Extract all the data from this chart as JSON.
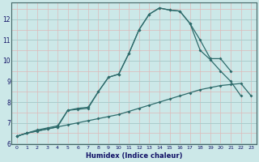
{
  "xlabel": "Humidex (Indice chaleur)",
  "bg_color": "#cce8e8",
  "line_color": "#2e6b6b",
  "grid_major_color": "#aacccc",
  "grid_minor_color": "#ddbaba",
  "series": {
    "line1": {
      "x": [
        0,
        1,
        2,
        3,
        4,
        5,
        6,
        7,
        8,
        9,
        10,
        11,
        12,
        13,
        14,
        15,
        16,
        17,
        18,
        19,
        20,
        21
      ],
      "y": [
        6.35,
        6.5,
        6.65,
        6.75,
        6.85,
        7.6,
        7.65,
        7.7,
        8.5,
        9.2,
        9.35,
        10.35,
        11.5,
        12.25,
        12.55,
        12.45,
        12.4,
        11.8,
        11.0,
        10.1,
        10.1,
        9.5
      ]
    },
    "line2": {
      "x": [
        0,
        1,
        2,
        3,
        4,
        5,
        6,
        7,
        8,
        9,
        10,
        11,
        12,
        13,
        14,
        15,
        16,
        17,
        18,
        19,
        20,
        21,
        22,
        23
      ],
      "y": [
        6.35,
        6.5,
        6.6,
        6.7,
        6.8,
        6.9,
        7.0,
        7.1,
        7.2,
        7.3,
        7.4,
        7.55,
        7.7,
        7.85,
        8.0,
        8.15,
        8.3,
        8.45,
        8.6,
        8.7,
        8.8,
        8.85,
        8.9,
        8.3
      ]
    },
    "line3": {
      "x": [
        0,
        1,
        2,
        3,
        4,
        5,
        6,
        7,
        8,
        9,
        10,
        11,
        12,
        13,
        14,
        15,
        16,
        17,
        18,
        19,
        20,
        21,
        22,
        23
      ],
      "y": [
        6.35,
        6.5,
        6.6,
        6.7,
        6.8,
        7.6,
        7.7,
        7.75,
        8.5,
        9.2,
        9.35,
        10.35,
        11.5,
        12.25,
        12.55,
        12.45,
        12.4,
        11.8,
        10.5,
        10.05,
        9.5,
        9.0,
        8.3,
        null
      ]
    }
  },
  "xlim": [
    -0.5,
    23.5
  ],
  "ylim": [
    5.95,
    12.8
  ],
  "xticks": [
    0,
    1,
    2,
    3,
    4,
    5,
    6,
    7,
    8,
    9,
    10,
    11,
    12,
    13,
    14,
    15,
    16,
    17,
    18,
    19,
    20,
    21,
    22,
    23
  ],
  "yticks": [
    6,
    7,
    8,
    9,
    10,
    11,
    12
  ],
  "markersize": 2.0
}
